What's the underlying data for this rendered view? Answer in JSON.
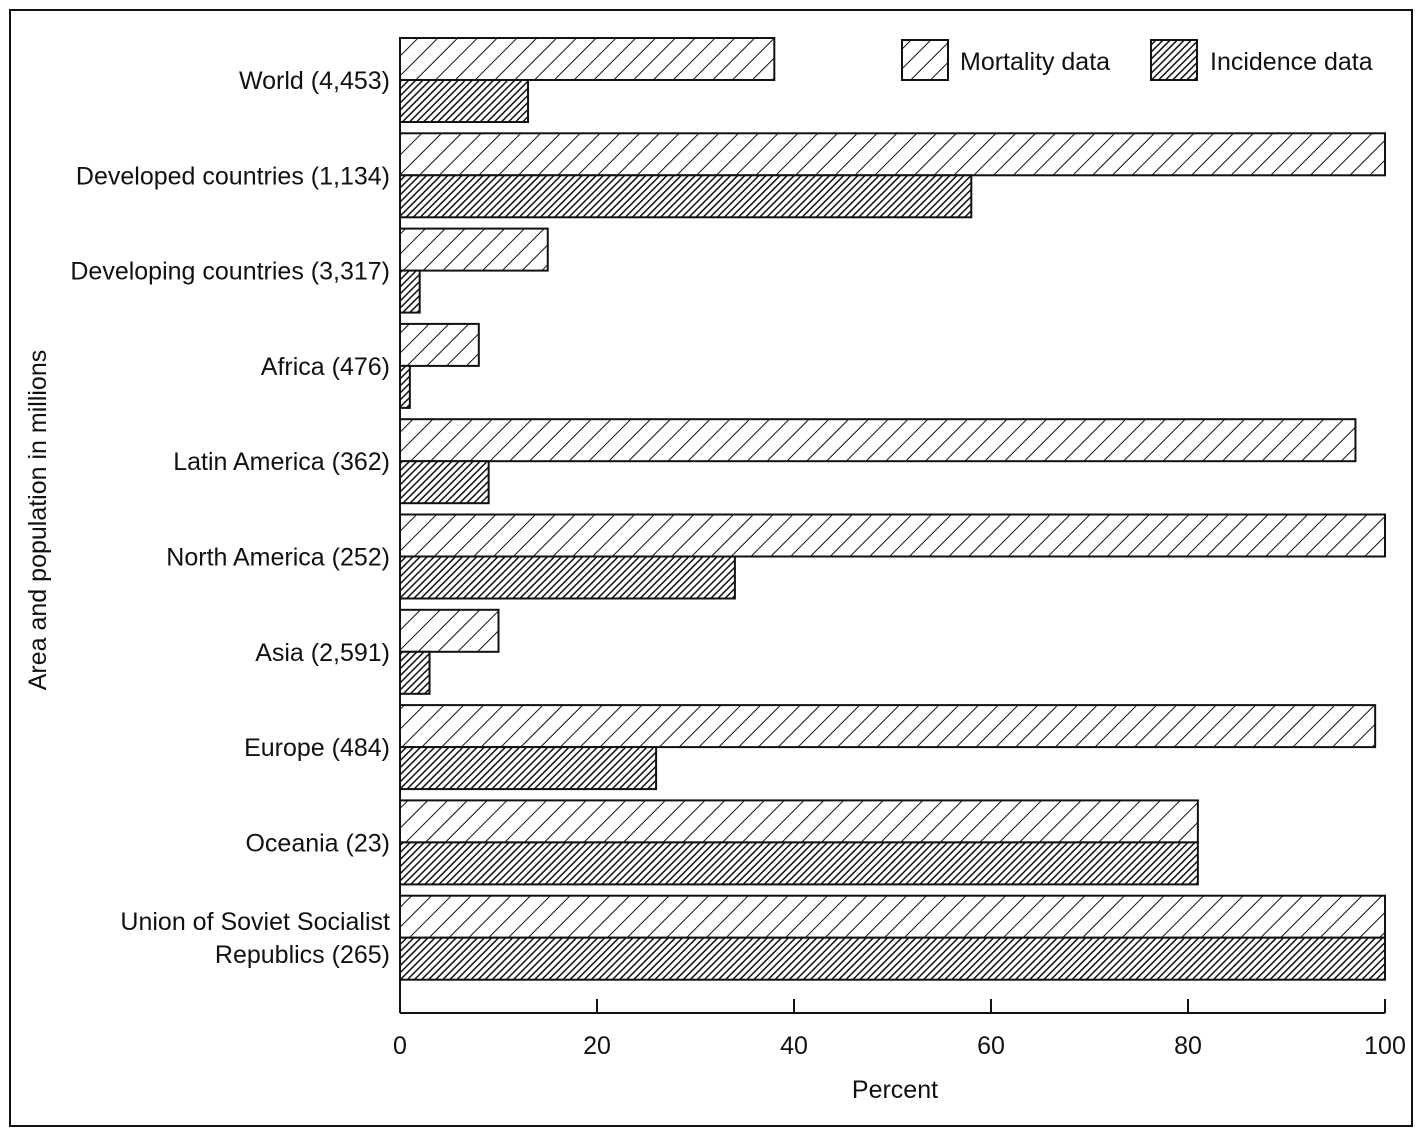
{
  "chart_data": {
    "type": "bar",
    "orientation": "horizontal",
    "categories": [
      "World (4,453)",
      "Developed countries (1,134)",
      "Developing countries (3,317)",
      "Africa (476)",
      "Latin America (362)",
      "North America (252)",
      "Asia (2,591)",
      "Europe (484)",
      "Oceania (23)",
      "Union of Soviet Socialist Republics (265)"
    ],
    "category_lines": [
      [
        "World (4,453)"
      ],
      [
        "Developed countries (1,134)"
      ],
      [
        "Developing countries (3,317)"
      ],
      [
        "Africa (476)"
      ],
      [
        "Latin America (362)"
      ],
      [
        "North America (252)"
      ],
      [
        "Asia (2,591)"
      ],
      [
        "Europe (484)"
      ],
      [
        "Oceania (23)"
      ],
      [
        "Union of Soviet Socialist",
        "Republics (265)"
      ]
    ],
    "series": [
      {
        "name": "Mortality data",
        "values": [
          38,
          100,
          15,
          8,
          97,
          100,
          10,
          99,
          81,
          100
        ],
        "pattern": "light-hatch"
      },
      {
        "name": "Incidence data",
        "values": [
          13,
          58,
          2,
          1,
          9,
          34,
          3,
          26,
          81,
          100
        ],
        "pattern": "dense-hatch"
      }
    ],
    "xlabel": "Percent",
    "ylabel": "Area and population in millions",
    "xlim": [
      0,
      100
    ],
    "xticks": [
      0,
      20,
      40,
      60,
      80,
      100
    ],
    "legend_position": "top-right",
    "grid": false
  }
}
